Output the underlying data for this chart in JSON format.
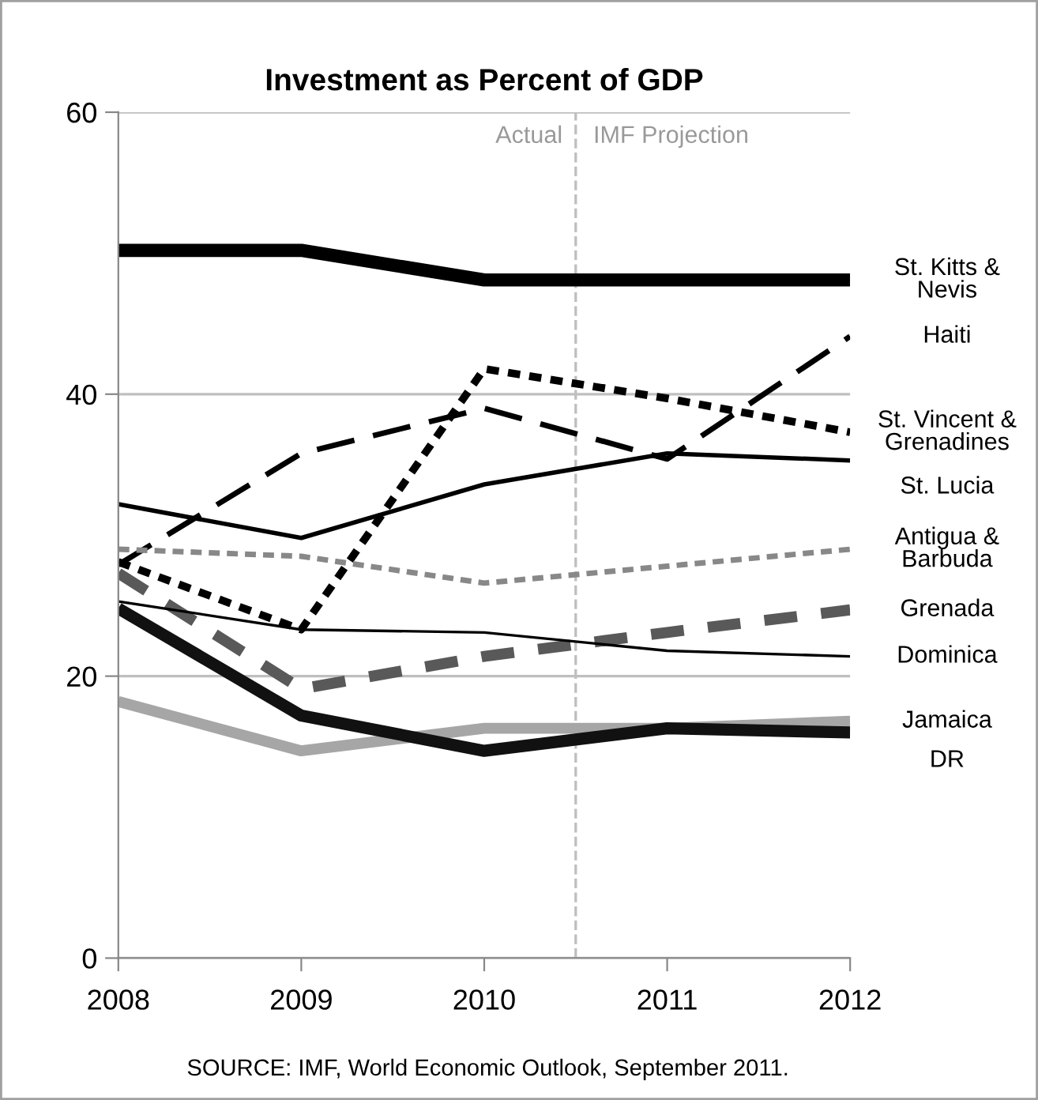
{
  "chart_data": {
    "type": "line",
    "title": "Investment as Percent of GDP",
    "x": [
      2008,
      2009,
      2010,
      2011,
      2012
    ],
    "xlim": [
      2008,
      2012
    ],
    "xticks": [
      2008,
      2009,
      2010,
      2011,
      2012
    ],
    "ylim": [
      0,
      60
    ],
    "yticks": [
      0,
      20,
      40,
      60
    ],
    "grid": "y",
    "legend": false,
    "marker": "none",
    "series": [
      {
        "name": "St. Kitts &\nNevis",
        "color": "#000000",
        "line_style": "solid",
        "values": [
          50.2,
          50.2,
          48.1,
          48.1,
          48.1
        ]
      },
      {
        "name": "Haiti",
        "color": "#000000",
        "line_style": "dashed",
        "values": [
          27.9,
          35.8,
          39.0,
          35.4,
          44.1
        ]
      },
      {
        "name": "St. Vincent &\nGrenadines",
        "color": "#000000",
        "line_style": "dashed",
        "values": [
          28.1,
          23.3,
          41.8,
          39.7,
          37.3
        ]
      },
      {
        "name": "St. Lucia",
        "color": "#000000",
        "line_style": "solid",
        "values": [
          32.2,
          29.8,
          33.6,
          35.8,
          35.3
        ]
      },
      {
        "name": "Antigua &\nBarbuda",
        "color": "#888888",
        "line_style": "dotted",
        "values": [
          29.0,
          28.5,
          26.6,
          27.8,
          29.0
        ]
      },
      {
        "name": "Grenada",
        "color": "#595959",
        "line_style": "dashed",
        "values": [
          27.3,
          19.1,
          21.4,
          23.1,
          24.7
        ]
      },
      {
        "name": "Dominica",
        "color": "#000000",
        "line_style": "solid",
        "values": [
          25.3,
          23.3,
          23.1,
          21.8,
          21.4
        ]
      },
      {
        "name": "Jamaica",
        "color": "#a6a6a6",
        "line_style": "solid",
        "values": [
          18.2,
          14.7,
          16.3,
          16.3,
          16.8
        ]
      },
      {
        "name": "DR",
        "color": "#111111",
        "line_style": "solid",
        "values": [
          24.8,
          17.2,
          14.7,
          16.3,
          16.0
        ]
      }
    ],
    "ref_lines": [
      {
        "axis": "x",
        "value": 2010.5,
        "color": "#bfbfbf",
        "line_style": "dashed"
      }
    ],
    "annotations": [
      {
        "text": "Actual",
        "x": 2010.5,
        "y": 60
      },
      {
        "text": "IMF Projection",
        "x": 2010.5,
        "y": 60
      },
      "SOURCE: IMF, World Economic Outlook, September 2011."
    ]
  }
}
